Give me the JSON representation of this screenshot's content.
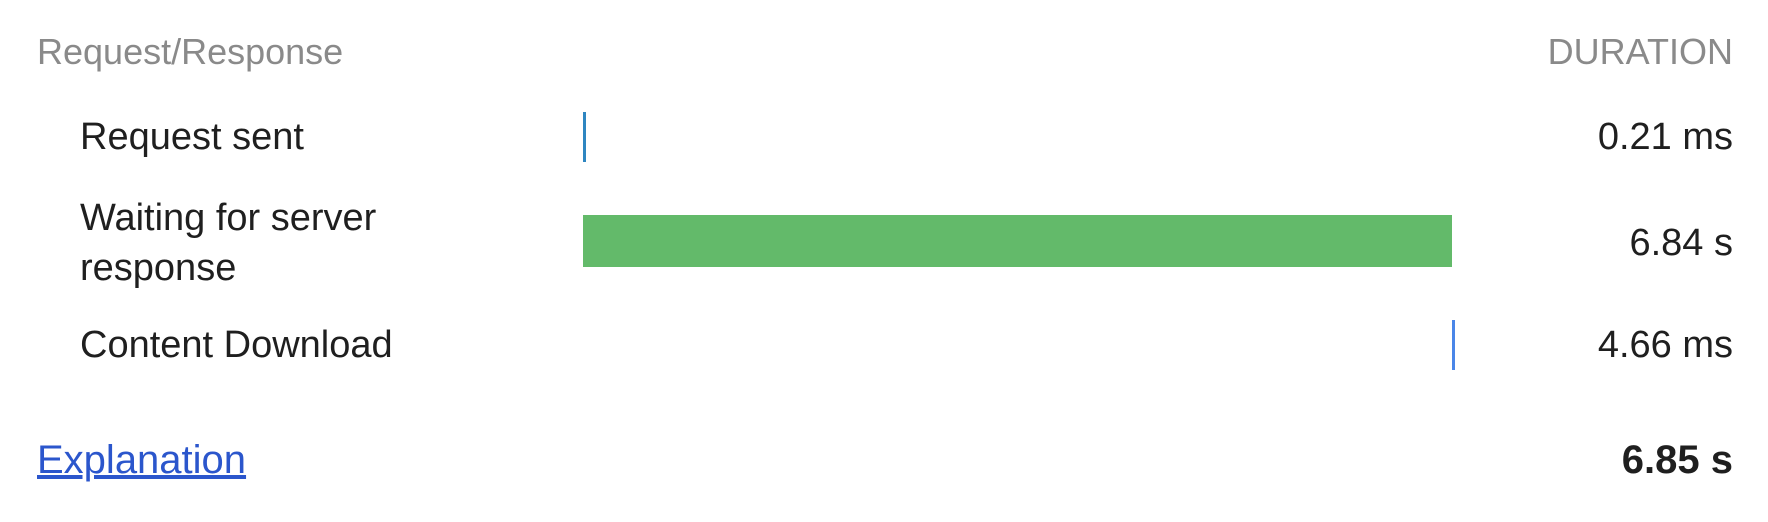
{
  "header": {
    "section_title": "Request/Response",
    "duration_label": "DURATION"
  },
  "rows": [
    {
      "label": "Request sent",
      "duration": "0.21 ms",
      "bar": {
        "start_fraction": 0.0,
        "end_fraction": 0.0,
        "color": "#2e86c1"
      }
    },
    {
      "label": "Waiting for server response",
      "duration": "6.84 s",
      "bar": {
        "start_fraction": 0.0,
        "end_fraction": 0.9987,
        "color": "#63ba6a"
      }
    },
    {
      "label": "Content Download",
      "duration": "4.66 ms",
      "bar": {
        "start_fraction": 0.9987,
        "end_fraction": 0.9994,
        "color": "#4a86e8"
      }
    }
  ],
  "footer": {
    "explanation_link": "Explanation",
    "total_duration": "6.85 s"
  }
}
